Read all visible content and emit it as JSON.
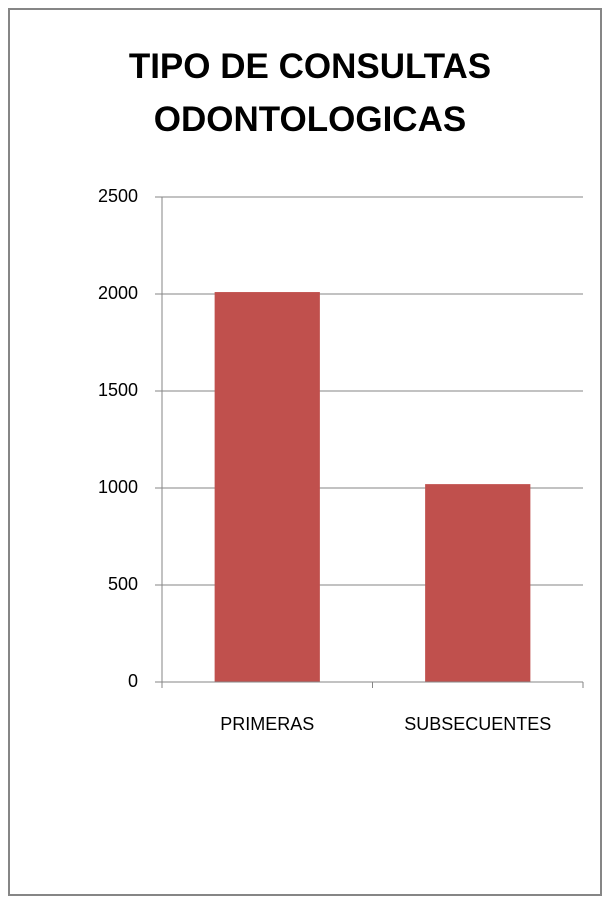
{
  "chart_data": {
    "type": "bar",
    "title": "TIPO DE CONSULTAS ODONTOLOGICAS",
    "categories": [
      "PRIMERAS",
      "SUBSECUENTES"
    ],
    "values": [
      2010,
      1020
    ],
    "color": "#c0504d",
    "ylim": [
      0,
      2500
    ],
    "yticks": [
      0,
      500,
      1000,
      1500,
      2000,
      2500
    ],
    "grid": true
  }
}
